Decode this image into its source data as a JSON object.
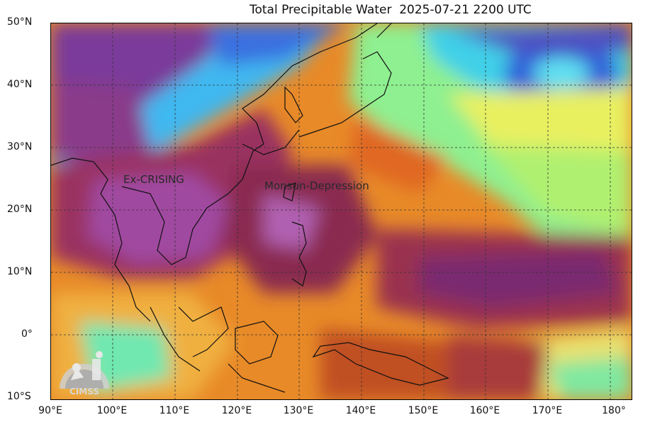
{
  "title": "Total Precipitable Water  2025-07-21 2200 UTC",
  "lat_labels": [
    "50°N",
    "40°N",
    "30°N",
    "20°N",
    "10°N",
    "0°",
    "10°S"
  ],
  "lon_labels": [
    "90°E",
    "100°E",
    "110°E",
    "120°E",
    "130°E",
    "140°E",
    "150°E",
    "160°E",
    "170°E",
    "180°"
  ],
  "annotations": {
    "storm1": "Ex-CRISING",
    "storm2": "Monsun-Depression"
  },
  "logo_text": "CIMSS",
  "colors": {
    "very_high": "#7a2a6a",
    "high": "#9a3a3a",
    "mid_high": "#c85a10",
    "mid": "#f0a030",
    "low_mid": "#e8e860",
    "low": "#6af0a0",
    "very_low": "#30c0f0",
    "dry": "#5048c8"
  }
}
